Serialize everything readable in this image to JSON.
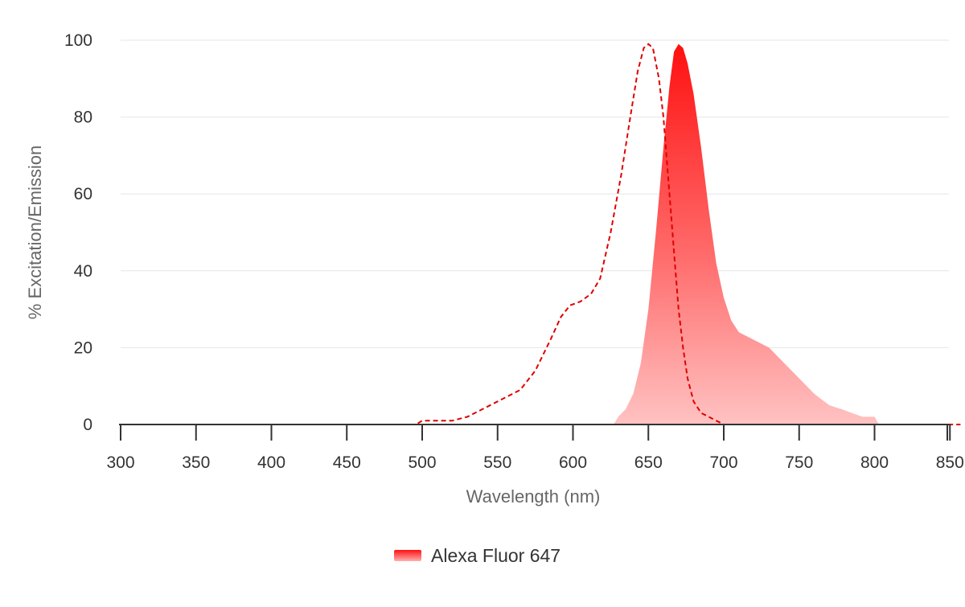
{
  "chart_data": {
    "type": "area",
    "title": "",
    "xlabel": "Wavelength (nm)",
    "ylabel": "% Excitation/Emission",
    "xlim": [
      300,
      857
    ],
    "ylim": [
      0,
      100
    ],
    "x_ticks": [
      300,
      350,
      400,
      450,
      500,
      550,
      600,
      650,
      700,
      750,
      800,
      850
    ],
    "y_ticks": [
      0,
      20,
      40,
      60,
      80,
      100
    ],
    "grid": true,
    "legend_position": "bottom-center",
    "colors": {
      "excitation": "#e00000",
      "emission_top": "#ff1010",
      "emission_bottom": "#ffc2c2"
    },
    "series": [
      {
        "name": "",
        "kind": "excitation",
        "style": "dashed-line",
        "points": [
          [
            300,
            0
          ],
          [
            400,
            0
          ],
          [
            496,
            0
          ],
          [
            500,
            1
          ],
          [
            510,
            1
          ],
          [
            520,
            1
          ],
          [
            530,
            2
          ],
          [
            540,
            4
          ],
          [
            550,
            6
          ],
          [
            560,
            8
          ],
          [
            565,
            9
          ],
          [
            575,
            14
          ],
          [
            585,
            22
          ],
          [
            592,
            28
          ],
          [
            598,
            31
          ],
          [
            605,
            32
          ],
          [
            612,
            34
          ],
          [
            618,
            38
          ],
          [
            625,
            50
          ],
          [
            632,
            65
          ],
          [
            638,
            80
          ],
          [
            643,
            92
          ],
          [
            647,
            98
          ],
          [
            650,
            99
          ],
          [
            653,
            98
          ],
          [
            657,
            90
          ],
          [
            660,
            80
          ],
          [
            664,
            60
          ],
          [
            667,
            45
          ],
          [
            670,
            30
          ],
          [
            673,
            20
          ],
          [
            676,
            12
          ],
          [
            680,
            6
          ],
          [
            685,
            3
          ],
          [
            690,
            2
          ],
          [
            695,
            1
          ],
          [
            700,
            0
          ],
          [
            857,
            0
          ]
        ]
      },
      {
        "name": "",
        "kind": "emission",
        "style": "filled-area",
        "points": [
          [
            627,
            0
          ],
          [
            630,
            2
          ],
          [
            635,
            4
          ],
          [
            640,
            8
          ],
          [
            645,
            16
          ],
          [
            650,
            30
          ],
          [
            655,
            50
          ],
          [
            660,
            72
          ],
          [
            664,
            88
          ],
          [
            667,
            97
          ],
          [
            670,
            99
          ],
          [
            673,
            98
          ],
          [
            676,
            94
          ],
          [
            680,
            86
          ],
          [
            685,
            72
          ],
          [
            690,
            56
          ],
          [
            695,
            42
          ],
          [
            700,
            33
          ],
          [
            705,
            27
          ],
          [
            710,
            24
          ],
          [
            720,
            22
          ],
          [
            730,
            20
          ],
          [
            740,
            16
          ],
          [
            750,
            12
          ],
          [
            760,
            8
          ],
          [
            770,
            5
          ],
          [
            778,
            4
          ],
          [
            785,
            3
          ],
          [
            792,
            2
          ],
          [
            800,
            2
          ],
          [
            803,
            0
          ]
        ]
      }
    ]
  },
  "legend": {
    "label": "Alexa Fluor 647"
  }
}
